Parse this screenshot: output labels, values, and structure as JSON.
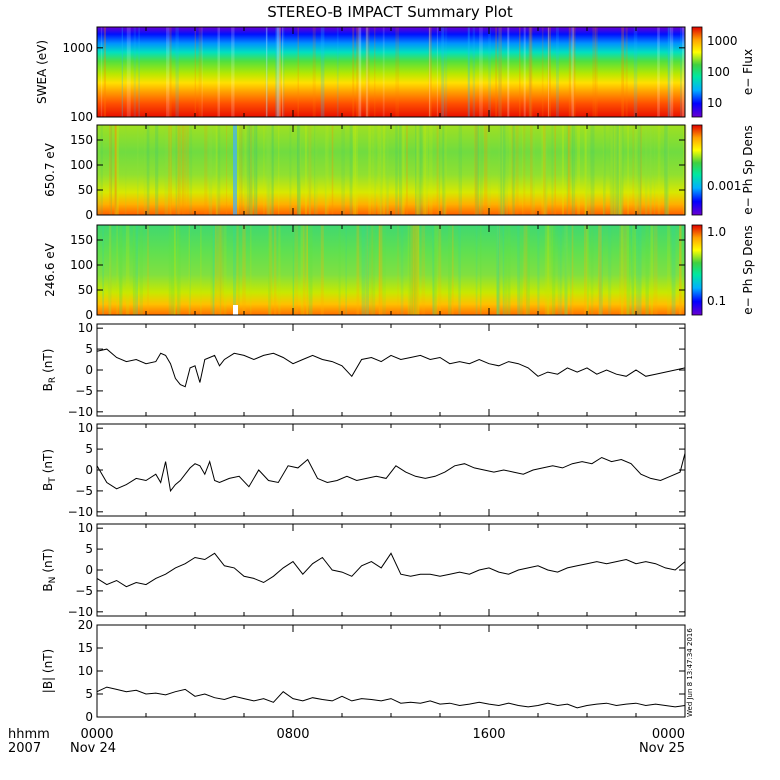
{
  "title": "STEREO-B IMPACT Summary Plot",
  "stamp": "Wed Jun  8 13:47:34 2016",
  "footer": {
    "time_label": "hhmm",
    "year_label": "2007",
    "time_ticks": [
      "0000",
      "0800",
      "1600",
      "0000"
    ],
    "date_start": "Nov 24",
    "date_end": "Nov 25"
  },
  "colors": {
    "line": "#000000",
    "spectrogram_scale": [
      "#6a00d0",
      "#0000ff",
      "#00b0ff",
      "#00e8a0",
      "#40d040",
      "#b8e000",
      "#ffff00",
      "#ffa000",
      "#ff4000",
      "#e00000"
    ]
  },
  "chart_data": [
    {
      "type": "heatmap",
      "name": "swea",
      "ylabel": "SWEA (eV)",
      "colorbar_label": "e− Flux",
      "colorbar_ticks": [
        "10",
        "100",
        "1000"
      ],
      "yticks": [
        "100",
        "1000"
      ],
      "yscale": "log",
      "ylim": [
        100,
        2000
      ],
      "xlim_hours": [
        0,
        24
      ],
      "description_levels": {
        "low_energy": "red",
        "mid_energy": "yellow-green",
        "high_energy": "blue"
      }
    },
    {
      "type": "heatmap",
      "name": "pad_650",
      "ylabel": "650.7 eV",
      "colorbar_label": "e− Ph Sp Dens",
      "colorbar_ticks": [
        "0.001"
      ],
      "yticks": [
        "0",
        "50",
        "100",
        "150"
      ],
      "ylim": [
        0,
        180
      ],
      "xlim_hours": [
        0,
        24
      ]
    },
    {
      "type": "heatmap",
      "name": "pad_246",
      "ylabel": "246.6 eV",
      "colorbar_label": "e− Ph Sp Dens",
      "colorbar_ticks": [
        "0.1",
        "1.0"
      ],
      "yticks": [
        "0",
        "50",
        "100",
        "150"
      ],
      "ylim": [
        0,
        180
      ],
      "xlim_hours": [
        0,
        24
      ]
    },
    {
      "type": "line",
      "name": "br",
      "ylabel_main": "B",
      "ylabel_sub": "R",
      "ylabel_unit": "(nT)",
      "yticks": [
        "−10",
        "−5",
        "0",
        "5",
        "10"
      ],
      "ylim": [
        -11,
        11
      ],
      "x_hours": [
        0,
        0.4,
        0.8,
        1.2,
        1.6,
        2.0,
        2.4,
        2.6,
        2.8,
        3.0,
        3.2,
        3.4,
        3.6,
        3.8,
        4.0,
        4.2,
        4.4,
        4.6,
        4.8,
        5.0,
        5.2,
        5.6,
        6.0,
        6.4,
        6.8,
        7.2,
        7.6,
        8.0,
        8.4,
        8.8,
        9.2,
        9.6,
        10.0,
        10.4,
        10.8,
        11.2,
        11.6,
        12.0,
        12.4,
        12.8,
        13.2,
        13.6,
        14.0,
        14.4,
        14.8,
        15.2,
        15.6,
        16.0,
        16.4,
        16.8,
        17.2,
        17.6,
        18.0,
        18.4,
        18.8,
        19.2,
        19.6,
        20.0,
        20.4,
        20.8,
        21.2,
        21.6,
        22.0,
        22.4,
        22.8,
        23.2,
        23.6,
        24.0
      ],
      "values": [
        4.5,
        5.0,
        3.0,
        2.0,
        2.5,
        1.5,
        2.0,
        4.0,
        3.5,
        1.5,
        -2.0,
        -3.5,
        -4.0,
        0.5,
        1.0,
        -3.0,
        2.5,
        3.0,
        3.5,
        1.0,
        2.5,
        4.0,
        3.5,
        2.5,
        3.5,
        4.0,
        3.0,
        1.5,
        2.5,
        3.5,
        2.5,
        2.0,
        1.0,
        -1.5,
        2.5,
        3.0,
        2.0,
        3.5,
        2.5,
        3.0,
        3.5,
        2.5,
        3.0,
        1.5,
        2.0,
        1.5,
        2.5,
        1.5,
        1.0,
        2.0,
        1.5,
        0.5,
        -1.5,
        -0.5,
        -1.0,
        0.5,
        -0.5,
        0.5,
        -1.0,
        0.0,
        -1.0,
        -1.5,
        0.0,
        -1.5,
        -1.0,
        -0.5,
        0.0,
        0.5
      ]
    },
    {
      "type": "line",
      "name": "bt",
      "ylabel_main": "B",
      "ylabel_sub": "T",
      "ylabel_unit": "(nT)",
      "yticks": [
        "−10",
        "−5",
        "0",
        "5",
        "10"
      ],
      "ylim": [
        -11,
        11
      ],
      "x_hours": [
        0,
        0.4,
        0.8,
        1.2,
        1.6,
        2.0,
        2.4,
        2.6,
        2.8,
        3.0,
        3.2,
        3.4,
        3.6,
        3.8,
        4.0,
        4.2,
        4.4,
        4.6,
        4.8,
        5.0,
        5.4,
        5.8,
        6.2,
        6.6,
        7.0,
        7.4,
        7.8,
        8.2,
        8.6,
        9.0,
        9.4,
        9.8,
        10.2,
        10.6,
        11.0,
        11.4,
        11.8,
        12.2,
        12.6,
        13.0,
        13.4,
        13.8,
        14.2,
        14.6,
        15.0,
        15.4,
        15.8,
        16.2,
        16.6,
        17.0,
        17.4,
        17.8,
        18.2,
        18.6,
        19.0,
        19.4,
        19.8,
        20.2,
        20.6,
        21.0,
        21.4,
        21.8,
        22.2,
        22.6,
        23.0,
        23.4,
        23.8,
        24.0
      ],
      "values": [
        1.0,
        -3.0,
        -4.5,
        -3.5,
        -2.0,
        -2.5,
        -1.0,
        -3.0,
        2.0,
        -5.0,
        -3.5,
        -2.5,
        -1.0,
        0.5,
        1.5,
        1.0,
        -1.0,
        2.0,
        -2.5,
        -3.0,
        -2.0,
        -1.5,
        -4.0,
        0.0,
        -2.5,
        -3.0,
        1.0,
        0.5,
        2.5,
        -2.0,
        -3.0,
        -2.5,
        -1.5,
        -2.5,
        -2.0,
        -1.5,
        -2.0,
        1.0,
        -0.5,
        -1.5,
        -2.0,
        -1.5,
        -0.5,
        1.0,
        1.5,
        0.5,
        0.0,
        -0.5,
        0.0,
        -0.5,
        -1.0,
        0.0,
        0.5,
        1.0,
        0.5,
        1.5,
        2.0,
        1.5,
        3.0,
        2.0,
        2.5,
        1.5,
        -1.0,
        -2.0,
        -2.5,
        -1.5,
        -0.5,
        4.0
      ]
    },
    {
      "type": "line",
      "name": "bn",
      "ylabel_main": "B",
      "ylabel_sub": "N",
      "ylabel_unit": "(nT)",
      "yticks": [
        "−10",
        "−5",
        "0",
        "5",
        "10"
      ],
      "ylim": [
        -11,
        11
      ],
      "x_hours": [
        0,
        0.4,
        0.8,
        1.2,
        1.6,
        2.0,
        2.4,
        2.8,
        3.2,
        3.6,
        4.0,
        4.4,
        4.8,
        5.2,
        5.6,
        6.0,
        6.4,
        6.8,
        7.2,
        7.6,
        8.0,
        8.4,
        8.8,
        9.2,
        9.6,
        10.0,
        10.4,
        10.8,
        11.2,
        11.6,
        12.0,
        12.4,
        12.8,
        13.2,
        13.6,
        14.0,
        14.4,
        14.8,
        15.2,
        15.6,
        16.0,
        16.4,
        16.8,
        17.2,
        17.6,
        18.0,
        18.4,
        18.8,
        19.2,
        19.6,
        20.0,
        20.4,
        20.8,
        21.2,
        21.6,
        22.0,
        22.4,
        22.8,
        23.2,
        23.6,
        24.0
      ],
      "values": [
        -2.0,
        -3.5,
        -2.5,
        -4.0,
        -3.0,
        -3.5,
        -2.0,
        -1.0,
        0.5,
        1.5,
        3.0,
        2.5,
        4.0,
        1.0,
        0.5,
        -1.5,
        -2.0,
        -3.0,
        -1.5,
        0.5,
        2.0,
        -1.0,
        1.5,
        3.0,
        0.0,
        -0.5,
        -1.5,
        1.0,
        2.0,
        0.5,
        4.0,
        -1.0,
        -1.5,
        -1.0,
        -1.0,
        -1.5,
        -1.0,
        -0.5,
        -1.0,
        0.0,
        0.5,
        -0.5,
        -1.0,
        0.0,
        0.5,
        1.0,
        0.0,
        -0.5,
        0.5,
        1.0,
        1.5,
        2.0,
        1.5,
        2.0,
        2.5,
        1.5,
        2.0,
        1.5,
        0.5,
        0.0,
        2.0
      ]
    },
    {
      "type": "line",
      "name": "bmag",
      "ylabel_main": "|B| (nT)",
      "yticks": [
        "0",
        "5",
        "10",
        "15",
        "20"
      ],
      "ylim": [
        0,
        20
      ],
      "x_hours": [
        0,
        0.4,
        0.8,
        1.2,
        1.6,
        2.0,
        2.4,
        2.8,
        3.2,
        3.6,
        4.0,
        4.4,
        4.8,
        5.2,
        5.6,
        6.0,
        6.4,
        6.8,
        7.2,
        7.6,
        8.0,
        8.4,
        8.8,
        9.2,
        9.6,
        10.0,
        10.4,
        10.8,
        11.2,
        11.6,
        12.0,
        12.4,
        12.8,
        13.2,
        13.6,
        14.0,
        14.4,
        14.8,
        15.2,
        15.6,
        16.0,
        16.4,
        16.8,
        17.2,
        17.6,
        18.0,
        18.4,
        18.8,
        19.2,
        19.6,
        20.0,
        20.4,
        20.8,
        21.2,
        21.6,
        22.0,
        22.4,
        22.8,
        23.2,
        23.6,
        24.0
      ],
      "values": [
        5.5,
        6.5,
        6.0,
        5.5,
        5.8,
        5.0,
        5.2,
        4.8,
        5.5,
        6.0,
        4.5,
        5.0,
        4.2,
        3.8,
        4.5,
        4.0,
        3.5,
        4.0,
        3.2,
        5.5,
        4.0,
        3.5,
        4.2,
        3.8,
        3.5,
        4.5,
        3.5,
        4.0,
        3.8,
        3.5,
        4.0,
        3.0,
        3.2,
        3.0,
        3.5,
        2.8,
        3.0,
        2.5,
        2.8,
        3.2,
        2.8,
        2.5,
        3.0,
        2.5,
        2.2,
        2.5,
        3.0,
        2.5,
        2.8,
        2.0,
        2.5,
        2.8,
        3.0,
        2.5,
        2.8,
        3.0,
        2.5,
        2.8,
        2.5,
        2.2,
        2.5
      ]
    }
  ]
}
